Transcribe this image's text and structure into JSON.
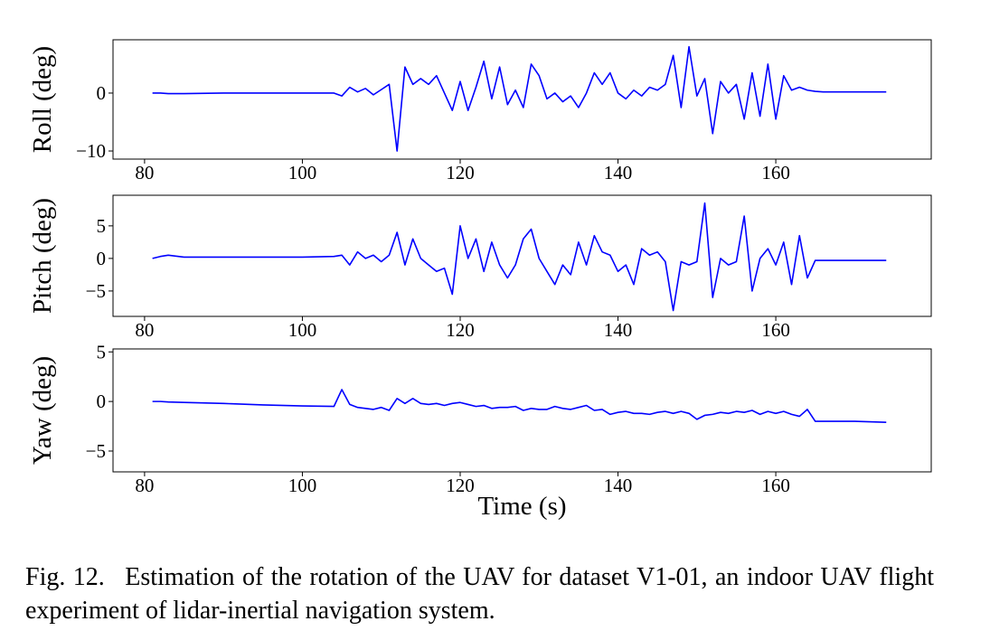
{
  "chart_data": [
    {
      "type": "line",
      "ylabel": "Roll (deg)",
      "x": [
        81,
        82,
        83,
        85,
        90,
        95,
        100,
        104,
        105,
        106,
        107,
        108,
        109,
        110,
        111,
        112,
        113,
        114,
        115,
        116,
        117,
        118,
        119,
        120,
        121,
        122,
        123,
        124,
        125,
        126,
        127,
        128,
        129,
        130,
        131,
        132,
        133,
        134,
        135,
        136,
        137,
        138,
        139,
        140,
        141,
        142,
        143,
        144,
        145,
        146,
        147,
        148,
        149,
        150,
        151,
        152,
        153,
        154,
        155,
        156,
        157,
        158,
        159,
        160,
        161,
        162,
        163,
        164,
        165,
        166,
        170,
        174
      ],
      "series": [
        {
          "color": "#0000ff",
          "values": [
            0,
            0,
            -0.1,
            -0.1,
            0,
            0,
            0,
            0,
            -0.5,
            1,
            0.2,
            0.8,
            -0.3,
            0.6,
            1.5,
            -10,
            4.5,
            1.5,
            2.5,
            1.5,
            3,
            0,
            -3,
            2,
            -3,
            1,
            5.5,
            -1,
            4.5,
            -2,
            0.5,
            -2.5,
            5,
            3,
            -1,
            0,
            -1.5,
            -0.5,
            -2.5,
            0,
            3.5,
            1.5,
            3.5,
            0,
            -1,
            0.5,
            -0.5,
            1,
            0.5,
            1.5,
            6.5,
            -2.5,
            8,
            -0.5,
            2.5,
            -7,
            2,
            0,
            1.5,
            -4.5,
            3.5,
            -4,
            5,
            -4.5,
            3,
            0.5,
            1,
            0.5,
            0.3,
            0.2,
            0.2,
            0.2
          ]
        }
      ],
      "xlim": [
        76,
        179.7
      ],
      "ylim": [
        -11.4,
        9.2
      ],
      "xticks": [
        80,
        100,
        120,
        140,
        160
      ],
      "yticks": [
        {
          "value": -10,
          "label": "−10"
        },
        0
      ]
    },
    {
      "type": "line",
      "ylabel": "Pitch (deg)",
      "x": [
        81,
        82,
        83,
        85,
        90,
        95,
        100,
        104,
        105,
        106,
        107,
        108,
        109,
        110,
        111,
        112,
        113,
        114,
        115,
        116,
        117,
        118,
        119,
        120,
        121,
        122,
        123,
        124,
        125,
        126,
        127,
        128,
        129,
        130,
        131,
        132,
        133,
        134,
        135,
        136,
        137,
        138,
        139,
        140,
        141,
        142,
        143,
        144,
        145,
        146,
        147,
        148,
        149,
        150,
        151,
        152,
        153,
        154,
        155,
        156,
        157,
        158,
        159,
        160,
        161,
        162,
        163,
        164,
        165,
        166,
        170,
        174
      ],
      "series": [
        {
          "color": "#0000ff",
          "values": [
            0,
            0.3,
            0.5,
            0.2,
            0.2,
            0.2,
            0.2,
            0.3,
            0.5,
            -1,
            1,
            0,
            0.5,
            -0.5,
            0.5,
            4,
            -1,
            3,
            0,
            -1,
            -2,
            -1.5,
            -5.5,
            5,
            0,
            3,
            -2,
            2.5,
            -1,
            -3,
            -1,
            3,
            4.5,
            0,
            -2,
            -4,
            -1,
            -2.5,
            2.5,
            -1,
            3.5,
            1,
            0.5,
            -2,
            -1,
            -4,
            1.5,
            0.5,
            1,
            -0.5,
            -8,
            -0.5,
            -1,
            -0.5,
            8.5,
            -6,
            0,
            -1,
            -0.5,
            6.5,
            -5,
            0,
            1.5,
            -1,
            2.5,
            -4,
            3.5,
            -3,
            -0.3,
            -0.3,
            -0.3,
            -0.3
          ]
        }
      ],
      "xlim": [
        76,
        179.7
      ],
      "ylim": [
        -8.9,
        9.7
      ],
      "xticks": [
        80,
        100,
        120,
        140,
        160
      ],
      "yticks": [
        {
          "value": -5,
          "label": "−5"
        },
        0,
        5
      ]
    },
    {
      "type": "line",
      "ylabel": "Yaw (deg)",
      "xlabel": "Time (s)",
      "x": [
        81,
        82,
        83,
        85,
        90,
        95,
        100,
        104,
        105,
        106,
        107,
        108,
        109,
        110,
        111,
        112,
        113,
        114,
        115,
        116,
        117,
        118,
        119,
        120,
        121,
        122,
        123,
        124,
        125,
        126,
        127,
        128,
        129,
        130,
        131,
        132,
        133,
        134,
        135,
        136,
        137,
        138,
        139,
        140,
        141,
        142,
        143,
        144,
        145,
        146,
        147,
        148,
        149,
        150,
        151,
        152,
        153,
        154,
        155,
        156,
        157,
        158,
        159,
        160,
        161,
        162,
        163,
        164,
        165,
        166,
        170,
        174
      ],
      "series": [
        {
          "color": "#0000ff",
          "values": [
            0,
            0,
            -0.05,
            -0.1,
            -0.2,
            -0.35,
            -0.45,
            -0.5,
            1.2,
            -0.3,
            -0.6,
            -0.7,
            -0.8,
            -0.6,
            -0.9,
            0.3,
            -0.2,
            0.3,
            -0.2,
            -0.3,
            -0.2,
            -0.4,
            -0.2,
            -0.1,
            -0.3,
            -0.5,
            -0.4,
            -0.7,
            -0.6,
            -0.6,
            -0.5,
            -0.9,
            -0.7,
            -0.8,
            -0.8,
            -0.5,
            -0.7,
            -0.8,
            -0.6,
            -0.4,
            -0.9,
            -0.8,
            -1.3,
            -1.1,
            -1.0,
            -1.2,
            -1.2,
            -1.3,
            -1.1,
            -1.0,
            -1.2,
            -1.0,
            -1.2,
            -1.8,
            -1.4,
            -1.3,
            -1.1,
            -1.2,
            -1.0,
            -1.1,
            -0.9,
            -1.3,
            -1.0,
            -1.2,
            -1.0,
            -1.3,
            -1.5,
            -0.8,
            -2.0,
            -2.0,
            -2.0,
            -2.1
          ]
        }
      ],
      "xlim": [
        76,
        179.7
      ],
      "ylim": [
        -7.1,
        5.3
      ],
      "xticks": [
        80,
        100,
        120,
        140,
        160
      ],
      "yticks": [
        {
          "value": -5,
          "label": "−5"
        },
        0,
        5
      ]
    }
  ],
  "caption": "Fig. 12.  Estimation of the rotation of the UAV for dataset V1-01, an indoor UAV flight experiment of lidar-inertial navigation system."
}
